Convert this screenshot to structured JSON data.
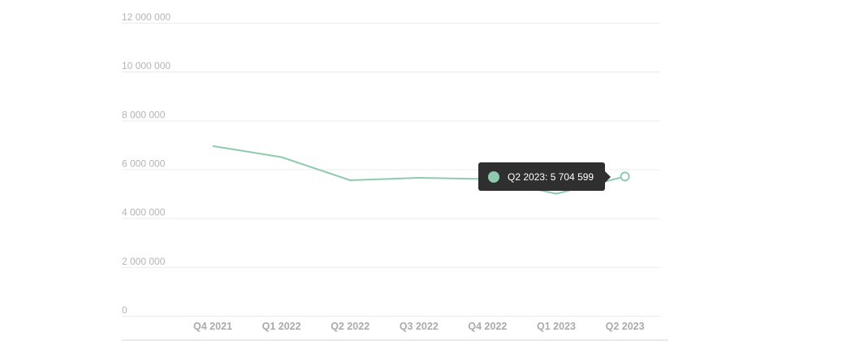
{
  "chart_data": {
    "type": "line",
    "categories": [
      "Q4 2021",
      "Q1 2022",
      "Q2 2022",
      "Q3 2022",
      "Q4 2022",
      "Q1 2023",
      "Q2 2023"
    ],
    "series": [
      {
        "values": [
          6950000,
          6500000,
          5550000,
          5650000,
          5600000,
          5000000,
          5704599
        ]
      }
    ],
    "y_ticks": [
      "0",
      "2 000 000",
      "4 000 000",
      "6 000 000",
      "8 000 000",
      "10 000 000",
      "12 000 000"
    ],
    "ylim": [
      0,
      12000000
    ],
    "grid": true,
    "line_color": "#8fcaae",
    "tooltip": {
      "text": "Q2 2023: 5 704 599",
      "category": "Q2 2023"
    }
  }
}
